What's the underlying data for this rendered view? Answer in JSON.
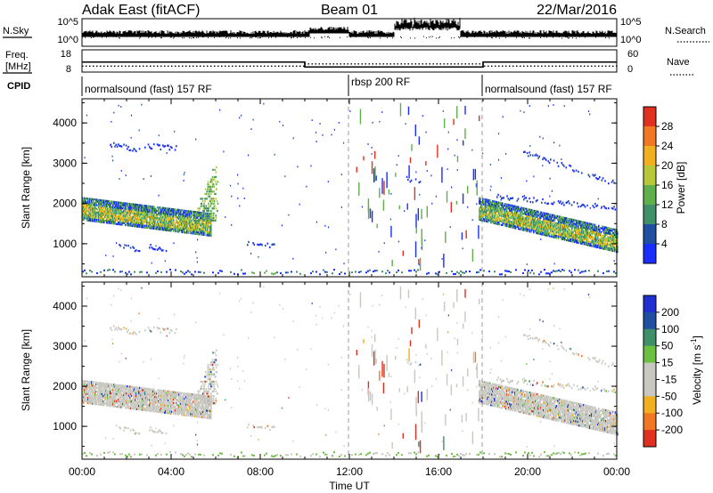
{
  "header": {
    "radar": "Adak East (fitACF)",
    "beam": "Beam 01",
    "date": "22/Mar/2016"
  },
  "noise_panel": {
    "left_label": "N.Sky",
    "right_label": "N.Search",
    "left_ticks": [
      "10^5",
      "10^0"
    ],
    "right_ticks": [
      "10^5",
      "10^0"
    ]
  },
  "freq_panel": {
    "left_label_1": "Freq.",
    "left_label_2": "[MHz]",
    "right_label": "Nave",
    "left_ticks": [
      "18",
      "8"
    ],
    "right_ticks": [
      "60",
      "0"
    ],
    "freq_values_mhz": [
      12.5,
      10.3,
      12.5
    ],
    "nave_values": [
      16,
      22,
      16
    ]
  },
  "cpid": {
    "label": "CPID",
    "segments": [
      {
        "label": "normalsound (fast) 157 RF",
        "start_h": 0,
        "end_h": 12
      },
      {
        "label": "rbsp 200 RF",
        "start_h": 12,
        "end_h": 18
      },
      {
        "label": "normalsound (fast) 157 RF",
        "start_h": 18,
        "end_h": 24
      }
    ]
  },
  "chart_data": [
    {
      "type": "heatmap",
      "title": "",
      "ylabel": "Slant Range [km]",
      "xlabel": "",
      "x_domain_h": [
        0,
        24
      ],
      "ylim": [
        180,
        4600
      ],
      "yticks": [
        "1000",
        "2000",
        "3000",
        "4000"
      ],
      "colorbar": {
        "label": "Power [dB]",
        "ticks": [
          "4",
          "8",
          "12",
          "16",
          "20",
          "24",
          "28"
        ],
        "range": [
          0,
          30
        ],
        "colors": [
          "#1a2dff",
          "#1f4fa0",
          "#3f8f6a",
          "#5fb04a",
          "#b8c83a",
          "#f0b020",
          "#f07820",
          "#e03020"
        ]
      },
      "echo_bands": [
        {
          "region": "western band",
          "t_start_h": 0,
          "t_end_h": 5.8,
          "range_start_km": 2000,
          "range_end_km": 1600,
          "level": "12-20 dB"
        },
        {
          "region": "eastern band",
          "t_start_h": 17.8,
          "t_end_h": 24,
          "range_start_km": 2000,
          "range_end_km": 1200,
          "level": "12-20 dB"
        }
      ]
    },
    {
      "type": "heatmap",
      "title": "",
      "ylabel": "Slant Range [km]",
      "xlabel": "Time UT",
      "x_domain_h": [
        0,
        24
      ],
      "ylim": [
        180,
        4600
      ],
      "xticks": [
        "00:00",
        "04:00",
        "08:00",
        "12:00",
        "16:00",
        "20:00",
        "00:00"
      ],
      "yticks": [
        "1000",
        "2000",
        "3000",
        "4000"
      ],
      "colorbar": {
        "label": "Velocity [m s^-1]",
        "ticks": [
          "200",
          "100",
          "50",
          "15",
          "-15",
          "-50",
          "-100",
          "-200"
        ],
        "range": [
          -250,
          250
        ],
        "colors": [
          "#2030d0",
          "#1f4fa0",
          "#3f8f6a",
          "#6cc040",
          "#c8c8c0",
          "#c8c8c0",
          "#f0b020",
          "#f07820",
          "#e03020"
        ]
      },
      "echo_bands": [
        {
          "region": "western band",
          "t_start_h": 0,
          "t_end_h": 5.8,
          "range_start_km": 2000,
          "range_end_km": 1600,
          "level": "-15 to 15 m/s"
        },
        {
          "region": "eastern band",
          "t_start_h": 17.8,
          "t_end_h": 24,
          "range_start_km": 2000,
          "range_end_km": 1200,
          "level": "-15 to 15 m/s"
        }
      ]
    }
  ]
}
